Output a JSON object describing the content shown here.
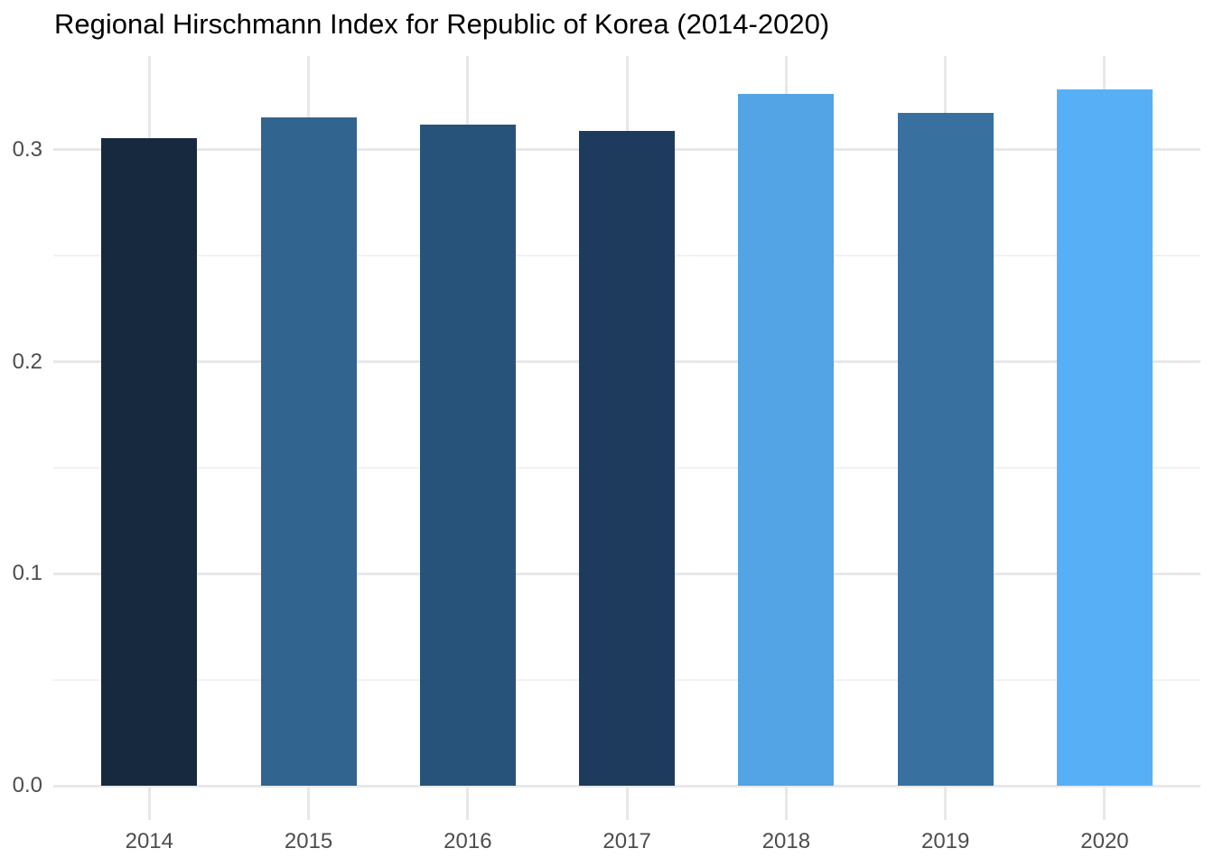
{
  "title": "Regional Hirschmann Index for Republic of Korea (2014-2020)",
  "chart_data": {
    "type": "bar",
    "title": "Regional Hirschmann Index for Republic of Korea (2014-2020)",
    "categories": [
      "2014",
      "2015",
      "2016",
      "2017",
      "2018",
      "2019",
      "2020"
    ],
    "values": [
      0.3055,
      0.3155,
      0.312,
      0.309,
      0.3265,
      0.3175,
      0.3285
    ],
    "bar_colors": [
      "#16293F",
      "#31648F",
      "#27527A",
      "#1E3B5D",
      "#52A4E4",
      "#38719F",
      "#57B0F6"
    ],
    "xlabel": "",
    "ylabel": "",
    "yticks": [
      0,
      0.1,
      0.2,
      0.3
    ],
    "ytick_labels": [
      "0.0",
      "0.1",
      "0.2",
      "0.3"
    ],
    "yticks_minor": [
      0.05,
      0.15,
      0.25
    ],
    "ylim": [
      -0.016,
      0.345
    ],
    "grid": true,
    "legend_position": "none",
    "colors": {
      "background": "#FFFFFF",
      "grid_major": "#E8E8E8",
      "grid_minor": "#F2F2F2",
      "axis_text": "#4D4D4D",
      "title_text": "#000000",
      "gradient_low": "#132B43",
      "gradient_high": "#56B1F7"
    }
  }
}
